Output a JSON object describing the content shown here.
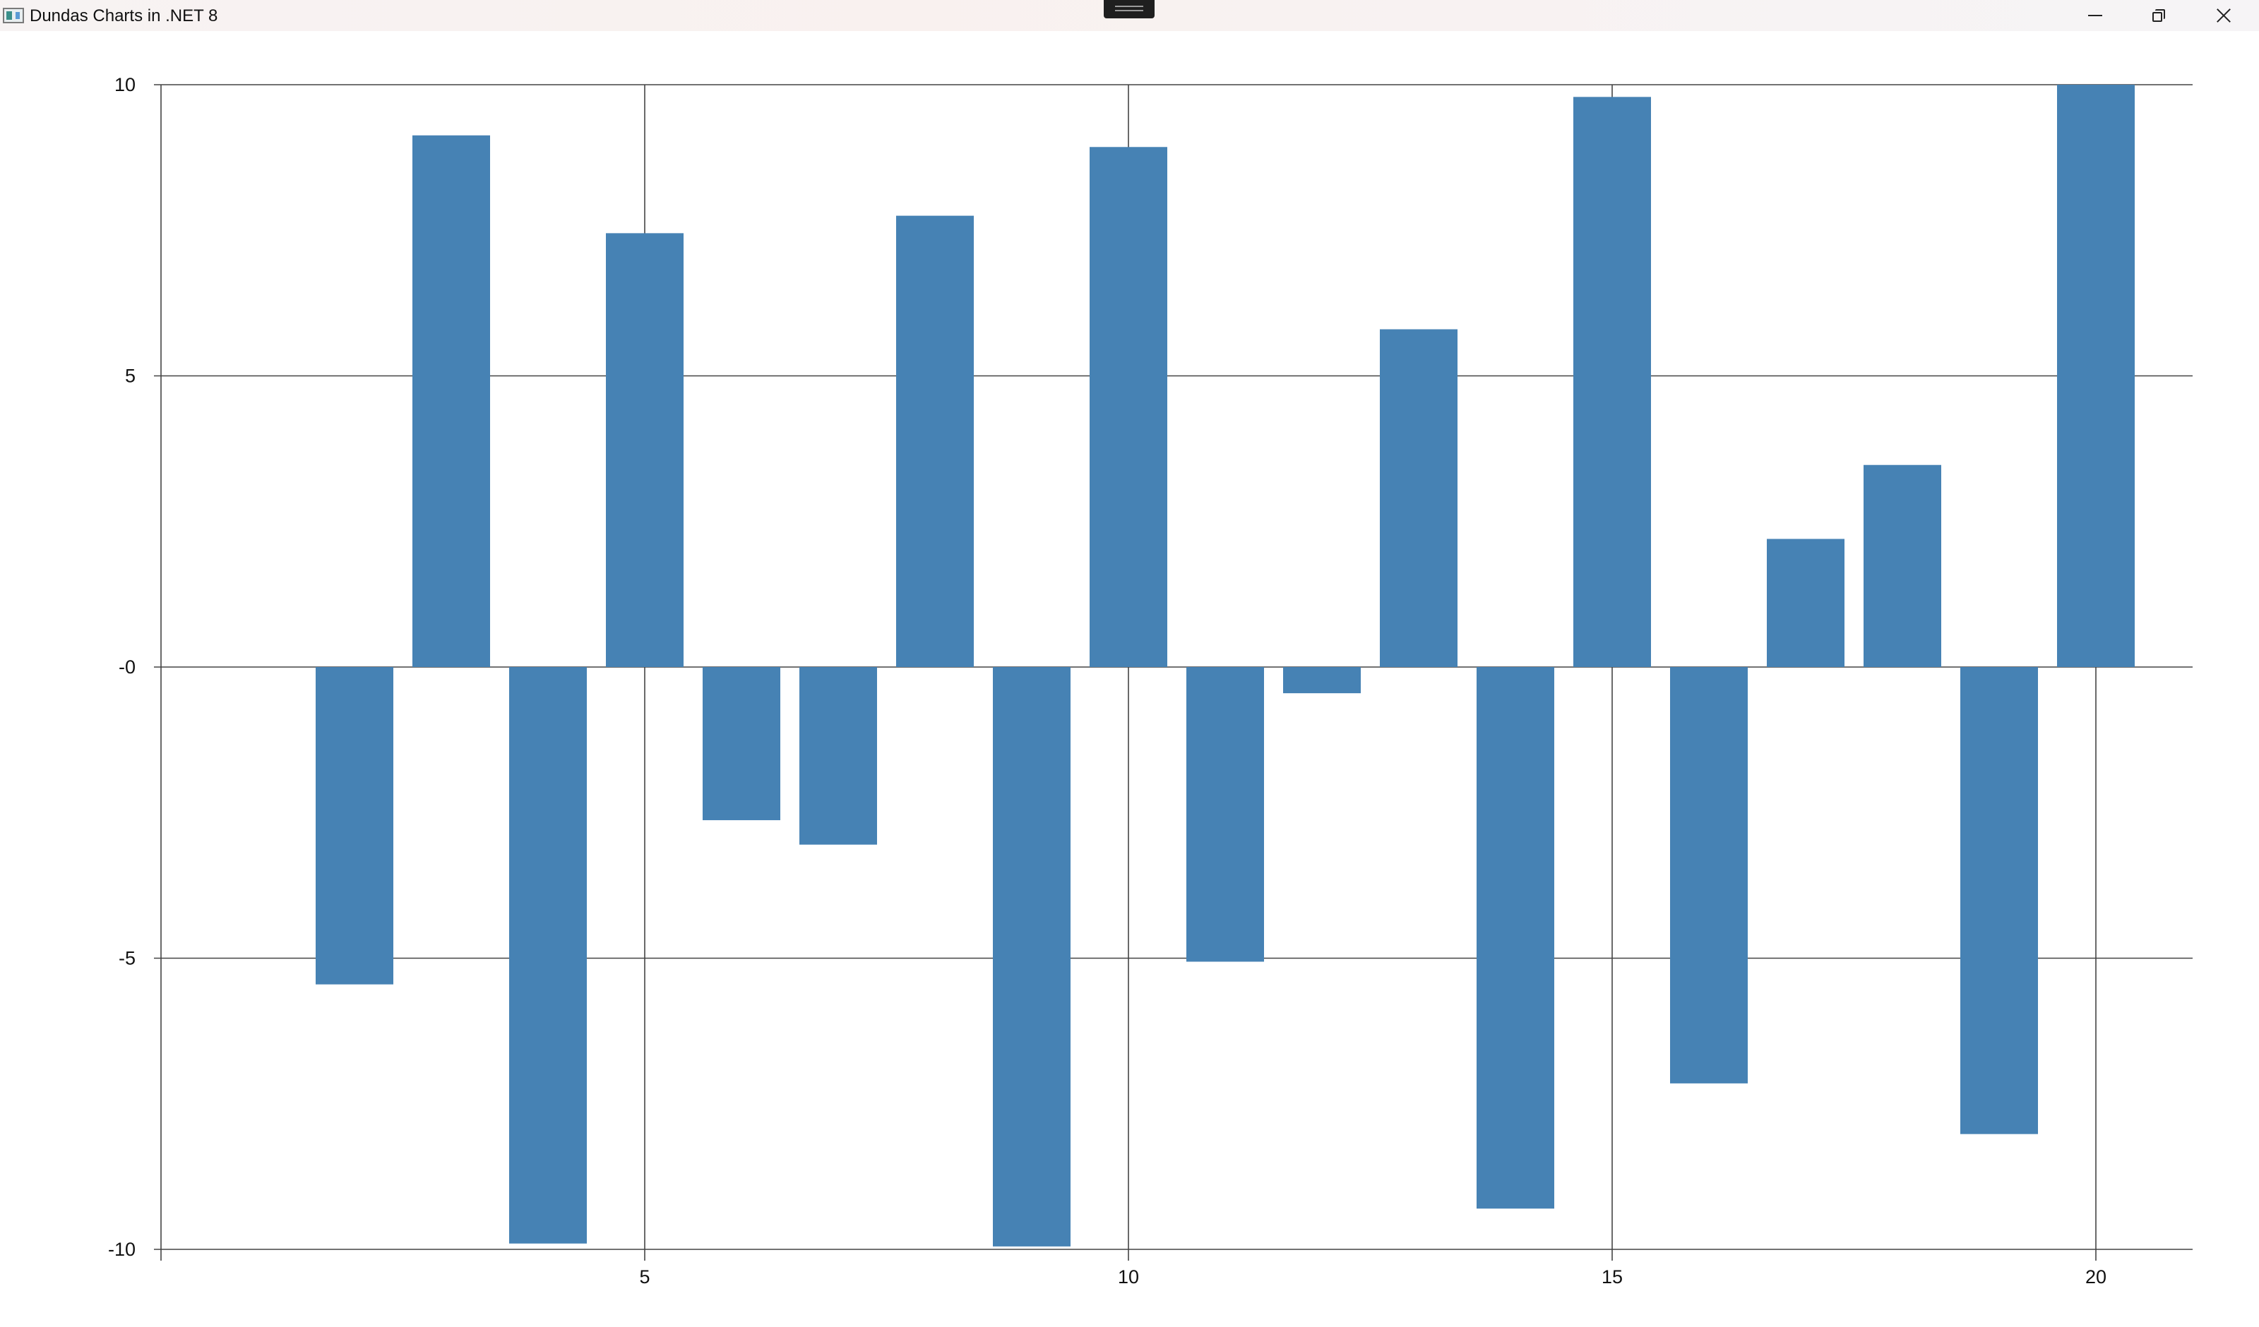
{
  "window": {
    "title": "Dundas Charts in .NET 8",
    "app_icon": "chart-app-icon",
    "controls": {
      "minimize_icon": "minimize-icon",
      "maximize_icon": "restore-icon",
      "close_icon": "close-icon"
    }
  },
  "colors": {
    "bar": "#4682b4",
    "grid": "#444444",
    "background": "#ffffff"
  },
  "chart_data": {
    "type": "bar",
    "title": "",
    "xlabel": "",
    "ylabel": "",
    "x": [
      2,
      3,
      4,
      5,
      6,
      7,
      8,
      9,
      10,
      11,
      12,
      13,
      14,
      15,
      16,
      17,
      18,
      19,
      20
    ],
    "values": [
      -5.45,
      9.13,
      -9.9,
      7.45,
      -2.63,
      -3.05,
      7.75,
      -9.95,
      8.93,
      -5.06,
      -0.45,
      5.8,
      -9.3,
      9.79,
      -7.15,
      2.2,
      3.47,
      -8.02,
      10.0
    ],
    "xlim": [
      0.0,
      21.0
    ],
    "ylim": [
      -10,
      10
    ],
    "xticks": [
      5,
      10,
      15,
      20
    ],
    "xtick_labels": [
      "5",
      "10",
      "15",
      "20"
    ],
    "yticks": [
      10,
      5,
      0,
      -5,
      -10
    ],
    "ytick_labels": [
      "10",
      "5",
      "-0",
      "-5",
      "-10"
    ],
    "grid": true,
    "legend": "none"
  }
}
